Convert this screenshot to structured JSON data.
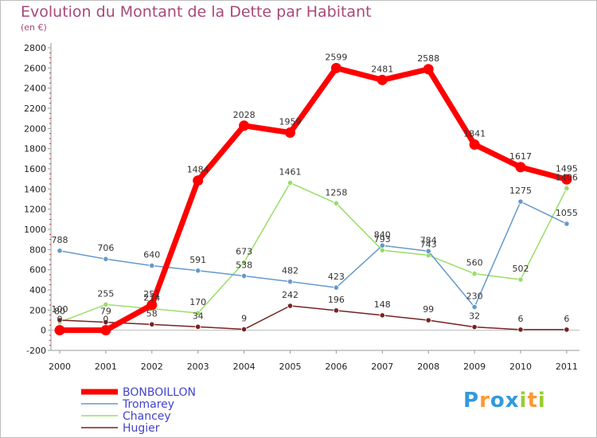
{
  "title": "Evolution du Montant de la Dette par Habitant",
  "unit": "(en €)",
  "logo": "Proxiti",
  "chart_data": {
    "type": "line",
    "title": "Evolution du Montant de la Dette par Habitant",
    "ylabel": "(en €)",
    "xlabel": "",
    "x": [
      "2000",
      "2001",
      "2002",
      "2003",
      "2004",
      "2005",
      "2006",
      "2007",
      "2008",
      "2009",
      "2010",
      "2011"
    ],
    "ylim": [
      -200,
      2800
    ],
    "yticks": [
      -200,
      0,
      200,
      400,
      600,
      800,
      1000,
      1200,
      1400,
      1600,
      1800,
      2000,
      2200,
      2400,
      2600,
      2800
    ],
    "grid": false,
    "legend": "bottom-left",
    "series": [
      {
        "name": "BONBOILLON",
        "color": "#ff0000",
        "values": [
          0,
          0,
          251,
          1484,
          2028,
          1959,
          2599,
          2481,
          2588,
          1841,
          1617,
          1495
        ]
      },
      {
        "name": "Tromarey",
        "color": "#6699cc",
        "values": [
          788,
          706,
          640,
          591,
          538,
          482,
          423,
          840,
          784,
          230,
          1275,
          1055
        ]
      },
      {
        "name": "Chancey",
        "color": "#99dd66",
        "values": [
          80,
          255,
          214,
          170,
          673,
          1461,
          1258,
          793,
          743,
          560,
          502,
          1406
        ]
      },
      {
        "name": "Hugier",
        "color": "#772222",
        "values": [
          100,
          79,
          58,
          34,
          9,
          242,
          196,
          148,
          99,
          32,
          6,
          6
        ]
      }
    ]
  }
}
